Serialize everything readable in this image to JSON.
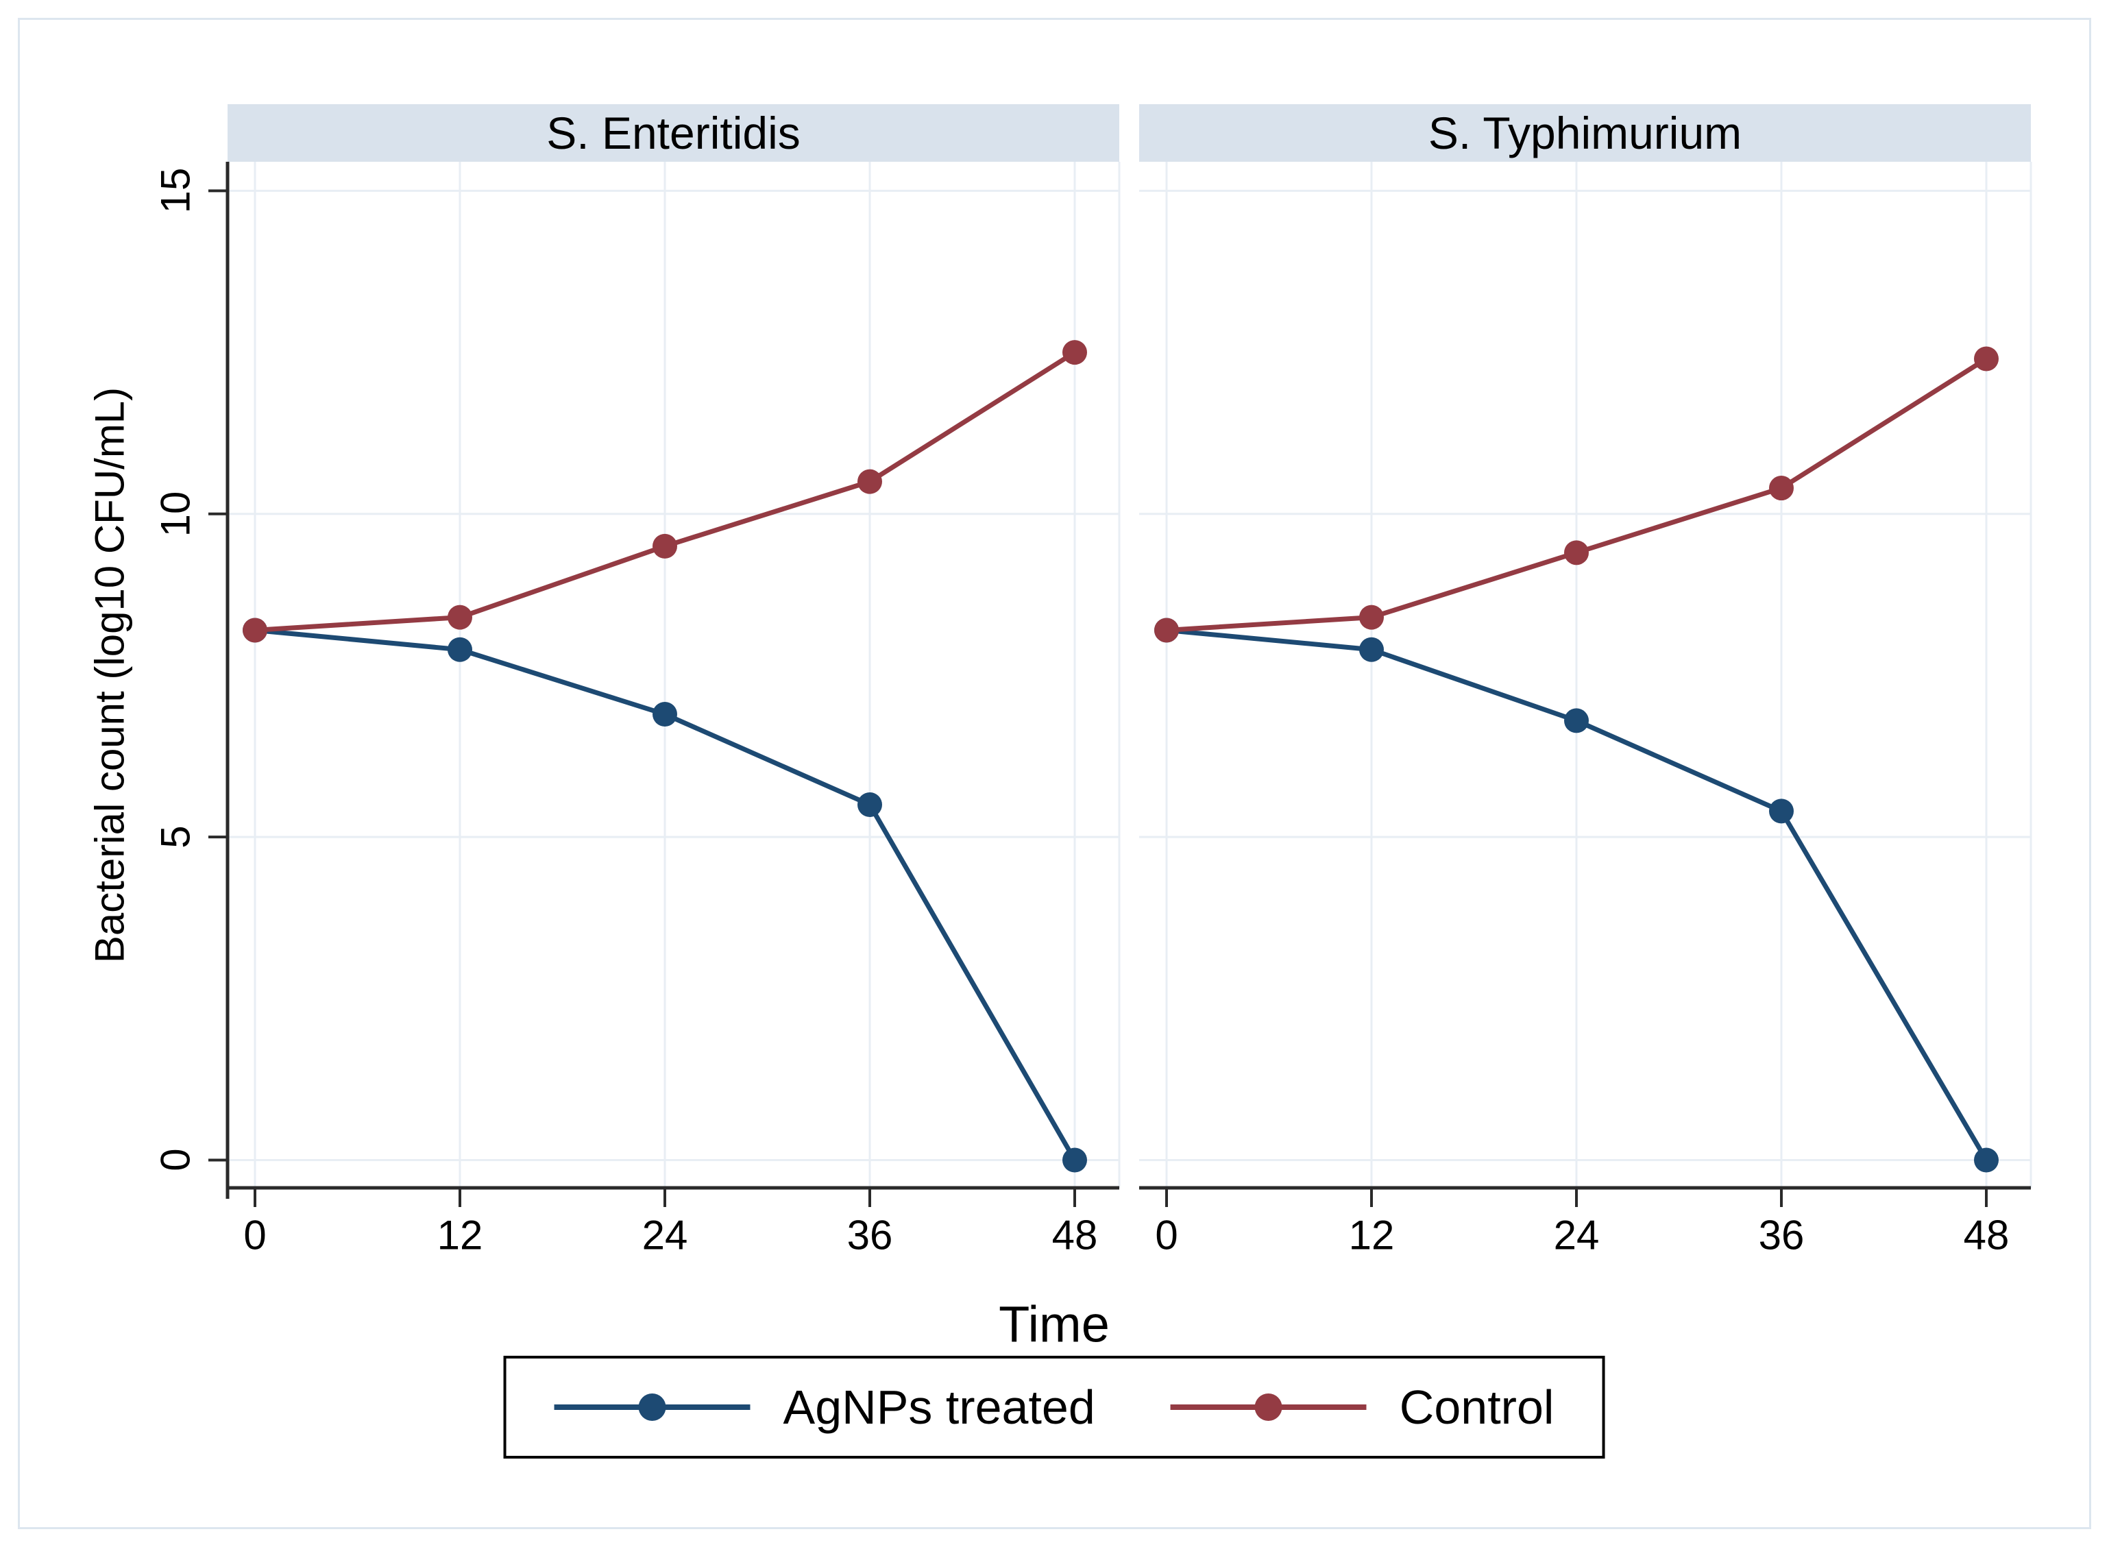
{
  "styles": {
    "header_bg": "#d9e2ec",
    "grid_color": "#e8eef4",
    "axis_color": "#2a2a2a",
    "navy": "#1d4a73",
    "maroon": "#943b43"
  },
  "chart_data": {
    "type": "line",
    "x": [
      0,
      12,
      24,
      36,
      48
    ],
    "xlabel": "Time",
    "ylabel": "Bacterial count (log10 CFU/mL)",
    "y_ticks": [
      0,
      5,
      10,
      15
    ],
    "ylim": [
      0,
      15
    ],
    "grid": true,
    "legend_position": "bottom",
    "panels": [
      {
        "title": "S. Enteritidis",
        "series": [
          {
            "name": "AgNPs treated",
            "color": "#1d4a73",
            "values": [
              8.2,
              7.9,
              6.9,
              5.5,
              0.0
            ]
          },
          {
            "name": "Control",
            "color": "#943b43",
            "values": [
              8.2,
              8.4,
              9.5,
              10.5,
              12.5
            ]
          }
        ]
      },
      {
        "title": "S. Typhimurium",
        "series": [
          {
            "name": "AgNPs treated",
            "color": "#1d4a73",
            "values": [
              8.2,
              7.9,
              6.8,
              5.4,
              0.0
            ]
          },
          {
            "name": "Control",
            "color": "#943b43",
            "values": [
              8.2,
              8.4,
              9.4,
              10.4,
              12.4
            ]
          }
        ]
      }
    ],
    "legend": [
      {
        "label": "AgNPs treated",
        "color": "#1d4a73"
      },
      {
        "label": "Control",
        "color": "#943b43"
      }
    ]
  }
}
